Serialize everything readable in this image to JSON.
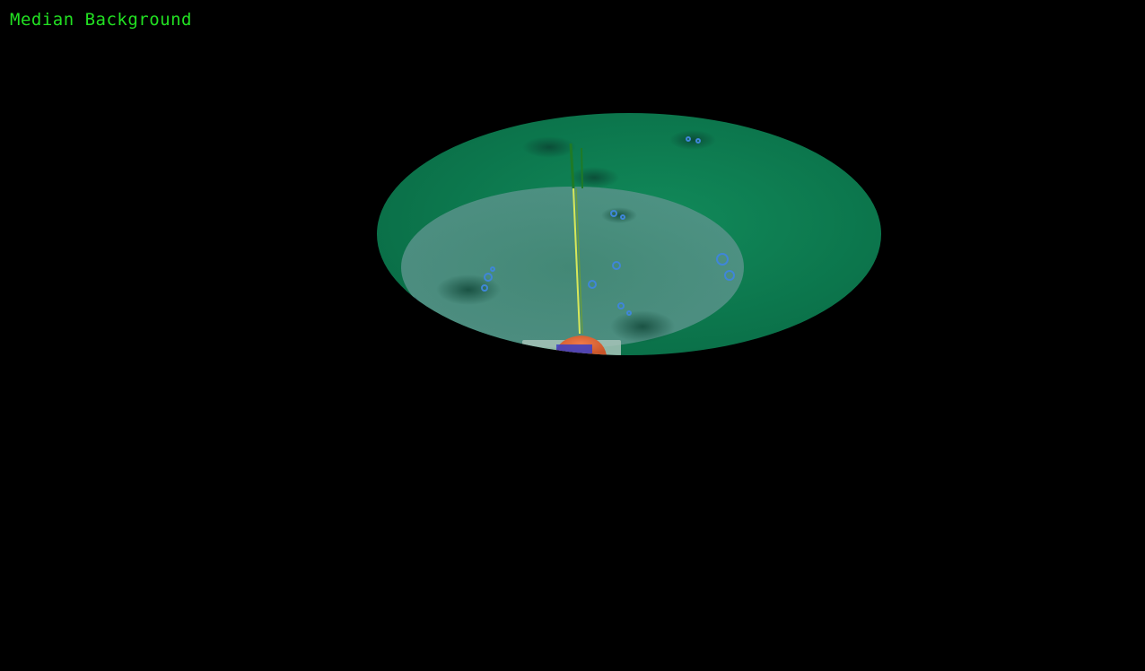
{
  "overlay": {
    "label": "Median Background"
  },
  "colors": {
    "background": "#000000",
    "label_text": "#22e022",
    "surface": "#0f7d52",
    "surface_edge": "#0b6a45",
    "inner_disc": "#5a8f8a",
    "marker_line": "#d8e85a",
    "marker_base": "#e86a3a",
    "bubbles": "#3f86d8",
    "shadows": "#0a4a34"
  },
  "scene": {
    "description_icon": "3d-viewport-icon"
  }
}
